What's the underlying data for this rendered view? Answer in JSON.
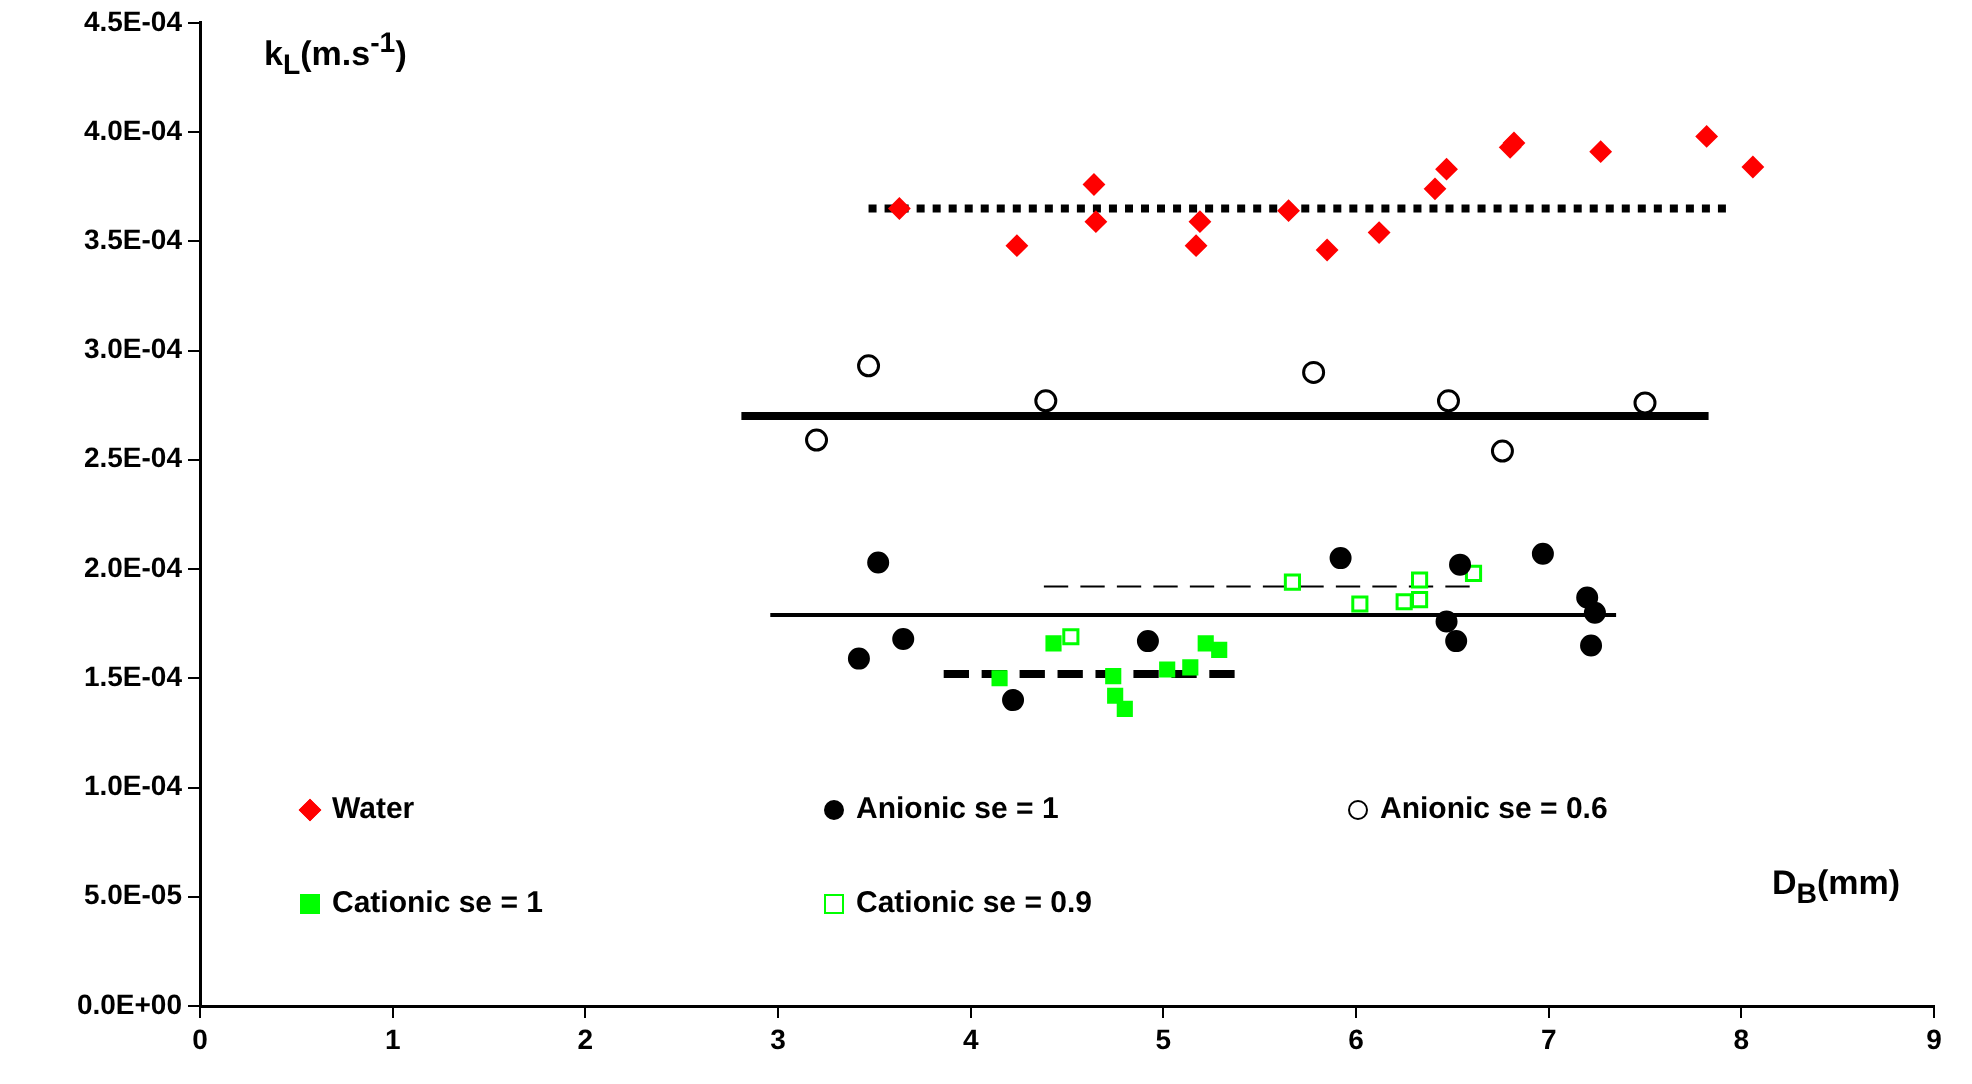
{
  "chart_data": {
    "type": "scatter",
    "xlabel": "D$_{B}$(mm)",
    "ylabel": "k$_{L}$(m.s$^{-1}$)",
    "xlim": [
      0,
      9
    ],
    "xticks": [
      0,
      1,
      2,
      3,
      4,
      5,
      6,
      7,
      8,
      9
    ],
    "ylim": [
      0,
      0.00045
    ],
    "yticks": [
      {
        "value": 0,
        "label": "0.0E+00"
      },
      {
        "value": 5e-05,
        "label": "5.0E-05"
      },
      {
        "value": 0.0001,
        "label": "1.0E-04"
      },
      {
        "value": 0.00015,
        "label": "1.5E-04"
      },
      {
        "value": 0.0002,
        "label": "2.0E-04"
      },
      {
        "value": 0.00025,
        "label": "2.5E-04"
      },
      {
        "value": 0.0003,
        "label": "3.0E-04"
      },
      {
        "value": 0.00035,
        "label": "3.5E-04"
      },
      {
        "value": 0.0004,
        "label": "4.0E-04"
      },
      {
        "value": 0.00045,
        "label": "4.5E-04"
      }
    ],
    "grid": false,
    "legend": "bottom",
    "series": [
      {
        "name": "Water",
        "color": "#ff0000",
        "marker": "diamond",
        "x": [
          3.63,
          4.24,
          4.64,
          4.65,
          5.19,
          5.17,
          5.65,
          5.85,
          6.12,
          6.41,
          6.47,
          6.8,
          6.82,
          7.27,
          7.82,
          8.06
        ],
        "values": [
          0.000365,
          0.000348,
          0.000376,
          0.000359,
          0.000359,
          0.000348,
          0.000364,
          0.000346,
          0.000354,
          0.000374,
          0.000383,
          0.000393,
          0.000395,
          0.000391,
          0.000398,
          0.000384
        ]
      },
      {
        "name": "Anionic se = 1",
        "color": "#000000",
        "marker": "circle",
        "x": [
          3.52,
          3.42,
          3.65,
          4.22,
          4.92,
          5.92,
          6.54,
          6.47,
          6.52,
          6.97,
          7.2,
          7.24,
          7.22
        ],
        "values": [
          0.000203,
          0.000159,
          0.000168,
          0.00014,
          0.000167,
          0.000205,
          0.000202,
          0.000176,
          0.000167,
          0.000207,
          0.000187,
          0.00018,
          0.000165
        ]
      },
      {
        "name": "Anionic se = 0.6",
        "color": "#000000",
        "marker": "circle-open",
        "x": [
          3.47,
          3.2,
          4.39,
          5.78,
          6.48,
          6.76,
          7.5
        ],
        "values": [
          0.000293,
          0.000259,
          0.000277,
          0.00029,
          0.000277,
          0.000254,
          0.000276
        ]
      },
      {
        "name": "Cationic se = 1",
        "color": "#00ff00",
        "marker": "square",
        "x": [
          4.43,
          4.15,
          4.74,
          4.75,
          4.8,
          5.02,
          5.14,
          5.22,
          5.29
        ],
        "values": [
          0.000166,
          0.00015,
          0.000151,
          0.000142,
          0.000136,
          0.000154,
          0.000155,
          0.000166,
          0.000163
        ]
      },
      {
        "name": "Cationic se = 0.9",
        "color": "#00ff00",
        "marker": "square-open",
        "x": [
          4.52,
          5.67,
          6.02,
          6.25,
          6.33,
          6.33,
          6.61
        ],
        "values": [
          0.000169,
          0.000194,
          0.000184,
          0.000185,
          0.000195,
          0.000186,
          0.000198
        ]
      },
      {
        "type": "line",
        "color": "#000000",
        "marker": "none",
        "line_style": "dotted",
        "x": [
          3.47,
          7.92
        ],
        "values": [
          0.000365,
          0.000365
        ]
      },
      {
        "type": "line",
        "color": "#000000",
        "marker": "none",
        "line_style": "solid",
        "x": [
          2.81,
          7.83
        ],
        "values": [
          0.00027,
          0.00027
        ]
      },
      {
        "type": "line",
        "color": "#000000",
        "marker": "none",
        "line_style": "solid",
        "x": [
          2.96,
          7.35
        ],
        "values": [
          0.000179,
          0.000179
        ]
      },
      {
        "type": "line",
        "color": "#000000",
        "marker": "none",
        "line_style": "dashed",
        "x": [
          3.86,
          5.37
        ],
        "values": [
          0.000152,
          0.000152
        ]
      },
      {
        "type": "line",
        "color": "#000000",
        "marker": "none",
        "line_style": "dashed",
        "x": [
          4.38,
          6.59
        ],
        "values": [
          0.000192,
          0.000192
        ]
      }
    ]
  }
}
